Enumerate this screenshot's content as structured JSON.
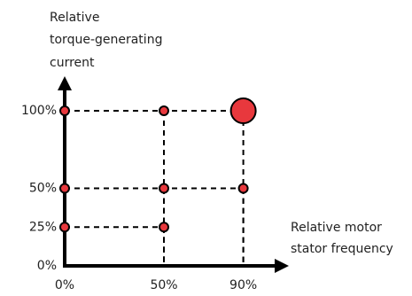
{
  "chart_data": {
    "type": "scatter",
    "y_label": [
      "Relative",
      "torque-generating",
      "current"
    ],
    "x_label": [
      "Relative motor",
      "stator frequency"
    ],
    "x": [
      0,
      50,
      0,
      50,
      90,
      0,
      50,
      90
    ],
    "y": [
      25,
      25,
      50,
      50,
      50,
      100,
      100,
      100
    ],
    "color": "#e8383d",
    "highlight_point": 7,
    "xlim": [
      0,
      110
    ],
    "ylim": [
      0,
      120
    ],
    "xticks": [
      {
        "value": 0,
        "label": "0%"
      },
      {
        "value": 50,
        "label": "50%"
      },
      {
        "value": 90,
        "label": "90%"
      }
    ],
    "yticks": [
      {
        "value": 0,
        "label": "0%"
      },
      {
        "value": 25,
        "label": "25%"
      },
      {
        "value": 50,
        "label": "50%"
      },
      {
        "value": 100,
        "label": "100%"
      }
    ],
    "grid": false
  }
}
